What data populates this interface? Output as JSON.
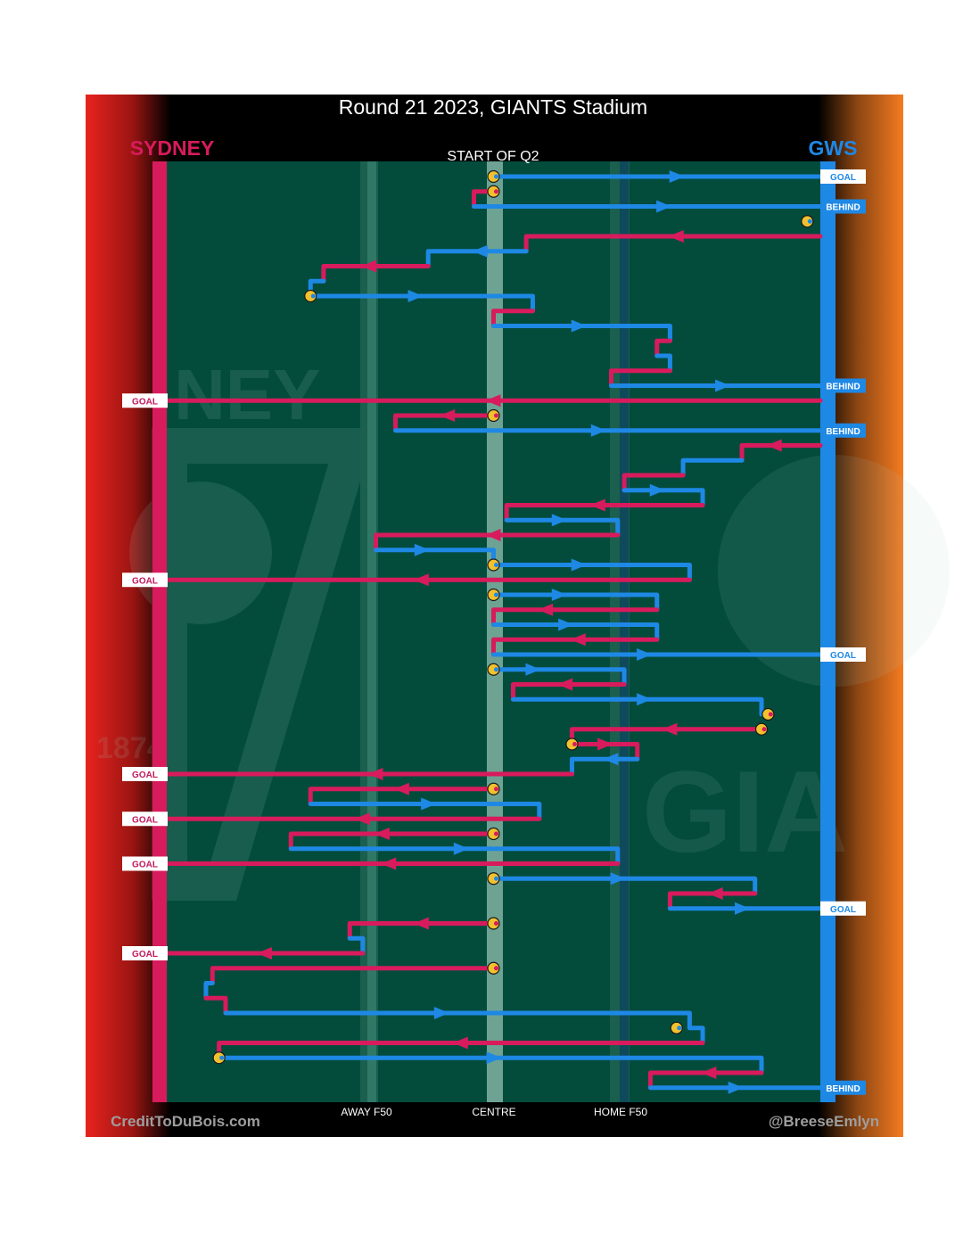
{
  "chart_data": {
    "type": "flow",
    "title": "Round 21 2023, GIANTS Stadium",
    "subtitle": "START OF Q2",
    "teams": {
      "left": {
        "name": "SYDNEY",
        "color": "#d81b5c"
      },
      "right": {
        "name": "GWS",
        "color": "#1e88e5"
      }
    },
    "x_axis": {
      "unit": "field position (0 = Sydney goal line, 100 = GWS goal line)",
      "ticks": [
        {
          "label": "AWAY F50",
          "value": 31
        },
        {
          "label": "CENTRE",
          "value": 50
        },
        {
          "label": "HOME F50",
          "value": 69
        }
      ]
    },
    "colors": {
      "sydney": "#d81b5c",
      "gws": "#1e88e5",
      "field": "#034c3c",
      "bounce": "#f2c12e",
      "goal_text_left": "#c2185b",
      "goal_text_right": "#1e88e5"
    },
    "credits": {
      "left": "CreditToDuBois.com",
      "right": "@BreeseEmlyn"
    },
    "outcome_labels": {
      "goal": "GOAL",
      "behind": "BEHIND"
    },
    "chains": [
      {
        "team": "gws",
        "segments": [
          [
            50,
            50,
            0
          ],
          [
            50,
            100,
            0
          ]
        ],
        "arrows": [
          78
        ],
        "start_bounce": true,
        "result": "goal"
      },
      {
        "team": "sydney",
        "segments": [
          [
            50,
            47,
            1
          ],
          [
            47,
            47,
            2
          ]
        ],
        "start_bounce": true
      },
      {
        "team": "gws",
        "segments": [
          [
            47,
            100,
            2
          ]
        ],
        "arrows": [
          76
        ],
        "result": "behind"
      },
      {
        "team": "gws",
        "segments": [
          [
            98,
            98,
            3
          ]
        ],
        "start_bounce": true
      },
      {
        "team": "sydney",
        "segments": [
          [
            100,
            55,
            4
          ],
          [
            55,
            55,
            5
          ]
        ],
        "arrows": [
          78
        ]
      },
      {
        "team": "gws",
        "segments": [
          [
            55,
            40,
            5
          ],
          [
            40,
            40,
            6
          ]
        ],
        "arrows": [
          48
        ]
      },
      {
        "team": "sydney",
        "segments": [
          [
            40,
            24,
            6
          ],
          [
            24,
            24,
            7
          ]
        ],
        "arrows": [
          31
        ]
      },
      {
        "team": "gws",
        "segments": [
          [
            24,
            22,
            7
          ],
          [
            22,
            22,
            8
          ]
        ]
      },
      {
        "team": "gws",
        "segments": [
          [
            22,
            56,
            8
          ],
          [
            56,
            56,
            9
          ]
        ],
        "arrows": [
          38
        ],
        "start_bounce": true
      },
      {
        "team": "sydney",
        "segments": [
          [
            56,
            50,
            9
          ],
          [
            50,
            50,
            10
          ]
        ]
      },
      {
        "team": "gws",
        "segments": [
          [
            50,
            77,
            10
          ],
          [
            77,
            77,
            11
          ]
        ],
        "arrows": [
          63
        ]
      },
      {
        "team": "sydney",
        "segments": [
          [
            77,
            75,
            11
          ],
          [
            75,
            75,
            12
          ]
        ]
      },
      {
        "team": "gws",
        "segments": [
          [
            75,
            77,
            12
          ],
          [
            77,
            77,
            13
          ]
        ]
      },
      {
        "team": "sydney",
        "segments": [
          [
            77,
            68,
            13
          ],
          [
            68,
            68,
            14
          ]
        ]
      },
      {
        "team": "gws",
        "segments": [
          [
            68,
            100,
            14
          ]
        ],
        "arrows": [
          85
        ],
        "result": "behind"
      },
      {
        "team": "sydney",
        "segments": [
          [
            100,
            0,
            15
          ]
        ],
        "arrows": [
          50
        ],
        "result": "goal"
      },
      {
        "team": "sydney",
        "segments": [
          [
            50,
            35,
            16
          ],
          [
            35,
            35,
            17
          ]
        ],
        "arrows": [
          43
        ],
        "start_bounce": true
      },
      {
        "team": "gws",
        "segments": [
          [
            35,
            100,
            17
          ]
        ],
        "arrows": [
          66
        ],
        "result": "behind"
      },
      {
        "team": "sydney",
        "segments": [
          [
            100,
            88,
            18
          ],
          [
            88,
            88,
            19
          ]
        ],
        "arrows": [
          93
        ]
      },
      {
        "team": "gws",
        "segments": [
          [
            88,
            79,
            19
          ],
          [
            79,
            79,
            20
          ]
        ]
      },
      {
        "team": "sydney",
        "segments": [
          [
            79,
            70,
            20
          ],
          [
            70,
            70,
            21
          ]
        ]
      },
      {
        "team": "gws",
        "segments": [
          [
            70,
            82,
            21
          ],
          [
            82,
            82,
            22
          ]
        ],
        "arrows": [
          75
        ]
      },
      {
        "team": "sydney",
        "segments": [
          [
            82,
            52,
            22
          ],
          [
            52,
            52,
            23
          ]
        ],
        "arrows": [
          66
        ]
      },
      {
        "team": "gws",
        "segments": [
          [
            52,
            69,
            23
          ],
          [
            69,
            69,
            24
          ]
        ],
        "arrows": [
          60
        ]
      },
      {
        "team": "sydney",
        "segments": [
          [
            69,
            32,
            24
          ],
          [
            32,
            32,
            25
          ]
        ],
        "arrows": [
          50
        ]
      },
      {
        "team": "gws",
        "segments": [
          [
            32,
            50,
            25
          ],
          [
            50,
            50,
            26
          ]
        ],
        "arrows": [
          39
        ]
      },
      {
        "team": "gws",
        "segments": [
          [
            50,
            80,
            26
          ],
          [
            80,
            80,
            27
          ]
        ],
        "arrows": [
          63
        ],
        "start_bounce": true
      },
      {
        "team": "sydney",
        "segments": [
          [
            80,
            0,
            27
          ]
        ],
        "arrows": [
          39
        ],
        "result": "goal"
      },
      {
        "team": "gws",
        "segments": [
          [
            50,
            75,
            28
          ],
          [
            75,
            75,
            29
          ]
        ],
        "arrows": [
          60
        ],
        "start_bounce": true
      },
      {
        "team": "sydney",
        "segments": [
          [
            75,
            50,
            29
          ],
          [
            50,
            50,
            30
          ]
        ],
        "arrows": [
          58
        ]
      },
      {
        "team": "gws",
        "segments": [
          [
            50,
            75,
            30
          ],
          [
            75,
            75,
            31
          ]
        ],
        "arrows": [
          61
        ]
      },
      {
        "team": "sydney",
        "segments": [
          [
            75,
            50,
            31
          ],
          [
            50,
            50,
            32
          ]
        ],
        "arrows": [
          63
        ]
      },
      {
        "team": "gws",
        "segments": [
          [
            50,
            100,
            32
          ]
        ],
        "arrows": [
          73
        ],
        "result": "goal"
      },
      {
        "team": "gws",
        "segments": [
          [
            50,
            70,
            33
          ],
          [
            70,
            70,
            34
          ]
        ],
        "arrows": [
          56
        ],
        "start_bounce": true
      },
      {
        "team": "sydney",
        "segments": [
          [
            70,
            53,
            34
          ],
          [
            53,
            53,
            35
          ]
        ],
        "arrows": [
          61
        ]
      },
      {
        "team": "gws",
        "segments": [
          [
            53,
            91,
            35
          ],
          [
            91,
            91,
            36
          ]
        ],
        "arrows": [
          73
        ]
      },
      {
        "team": "sydney",
        "segments": [
          [
            92,
            92,
            36
          ]
        ],
        "start_bounce": true
      },
      {
        "team": "sydney",
        "segments": [
          [
            91,
            62,
            37
          ],
          [
            62,
            62,
            38
          ]
        ],
        "arrows": [
          77
        ],
        "start_bounce": true
      },
      {
        "team": "sydney",
        "segments": [
          [
            62,
            72,
            38
          ],
          [
            72,
            72,
            39
          ]
        ],
        "arrows": [
          67
        ],
        "start_bounce": true
      },
      {
        "team": "gws",
        "segments": [
          [
            72,
            62,
            39
          ],
          [
            62,
            62,
            40
          ]
        ],
        "arrows": [
          68
        ]
      },
      {
        "team": "sydney",
        "segments": [
          [
            62,
            0,
            40
          ]
        ],
        "arrows": [
          32
        ],
        "result": "goal"
      },
      {
        "team": "sydney",
        "segments": [
          [
            50,
            22,
            41
          ],
          [
            22,
            22,
            42
          ]
        ],
        "arrows": [
          36
        ],
        "start_bounce": true
      },
      {
        "team": "gws",
        "segments": [
          [
            22,
            57,
            42
          ],
          [
            57,
            57,
            43
          ]
        ],
        "arrows": [
          40
        ]
      },
      {
        "team": "sydney",
        "segments": [
          [
            57,
            0,
            43
          ]
        ],
        "arrows": [
          30
        ],
        "result": "goal"
      },
      {
        "team": "sydney",
        "segments": [
          [
            50,
            19,
            44
          ],
          [
            19,
            19,
            45
          ]
        ],
        "arrows": [
          33
        ],
        "start_bounce": true
      },
      {
        "team": "gws",
        "segments": [
          [
            19,
            69,
            45
          ],
          [
            69,
            69,
            46
          ]
        ],
        "arrows": [
          45
        ]
      },
      {
        "team": "sydney",
        "segments": [
          [
            69,
            0,
            46
          ]
        ],
        "arrows": [
          34
        ],
        "result": "goal"
      },
      {
        "team": "gws",
        "segments": [
          [
            50,
            90,
            47
          ],
          [
            90,
            90,
            48
          ]
        ],
        "arrows": [
          69
        ],
        "start_bounce": true
      },
      {
        "team": "sydney",
        "segments": [
          [
            90,
            77,
            48
          ],
          [
            77,
            77,
            49
          ]
        ],
        "arrows": [
          84
        ]
      },
      {
        "team": "gws",
        "segments": [
          [
            77,
            100,
            49
          ]
        ],
        "arrows": [
          88
        ],
        "result": "goal"
      },
      {
        "team": "sydney",
        "segments": [
          [
            50,
            28,
            50
          ],
          [
            28,
            28,
            51
          ]
        ],
        "arrows": [
          39
        ],
        "start_bounce": true
      },
      {
        "team": "gws",
        "segments": [
          [
            28,
            30,
            51
          ],
          [
            30,
            30,
            52
          ]
        ]
      },
      {
        "team": "sydney",
        "segments": [
          [
            30,
            0,
            52
          ]
        ],
        "arrows": [
          15
        ],
        "result": "goal"
      },
      {
        "team": "sydney",
        "segments": [
          [
            50,
            7,
            53
          ],
          [
            7,
            7,
            54
          ]
        ],
        "start_bounce": true
      },
      {
        "team": "gws",
        "segments": [
          [
            7,
            6,
            54
          ],
          [
            6,
            6,
            55
          ]
        ]
      },
      {
        "team": "sydney",
        "segments": [
          [
            6,
            9,
            55
          ],
          [
            9,
            9,
            56
          ]
        ]
      },
      {
        "team": "gws",
        "segments": [
          [
            9,
            80,
            56
          ],
          [
            80,
            80,
            57
          ]
        ],
        "arrows": [
          42
        ]
      },
      {
        "team": "gws",
        "segments": [
          [
            78,
            78,
            57
          ]
        ],
        "start_bounce": true
      },
      {
        "team": "gws",
        "segments": [
          [
            80,
            82,
            57
          ],
          [
            82,
            82,
            58
          ]
        ]
      },
      {
        "team": "sydney",
        "segments": [
          [
            82,
            8,
            58
          ],
          [
            8,
            8,
            59
          ]
        ],
        "arrows": [
          45
        ]
      },
      {
        "team": "gws",
        "segments": [
          [
            8,
            91,
            59
          ],
          [
            91,
            91,
            60
          ]
        ],
        "arrows": [
          50
        ],
        "start_bounce": true
      },
      {
        "team": "sydney",
        "segments": [
          [
            91,
            74,
            60
          ],
          [
            74,
            74,
            61
          ]
        ],
        "arrows": [
          83
        ]
      },
      {
        "team": "gws",
        "segments": [
          [
            74,
            100,
            61
          ]
        ],
        "arrows": [
          87
        ],
        "result": "behind"
      }
    ]
  }
}
